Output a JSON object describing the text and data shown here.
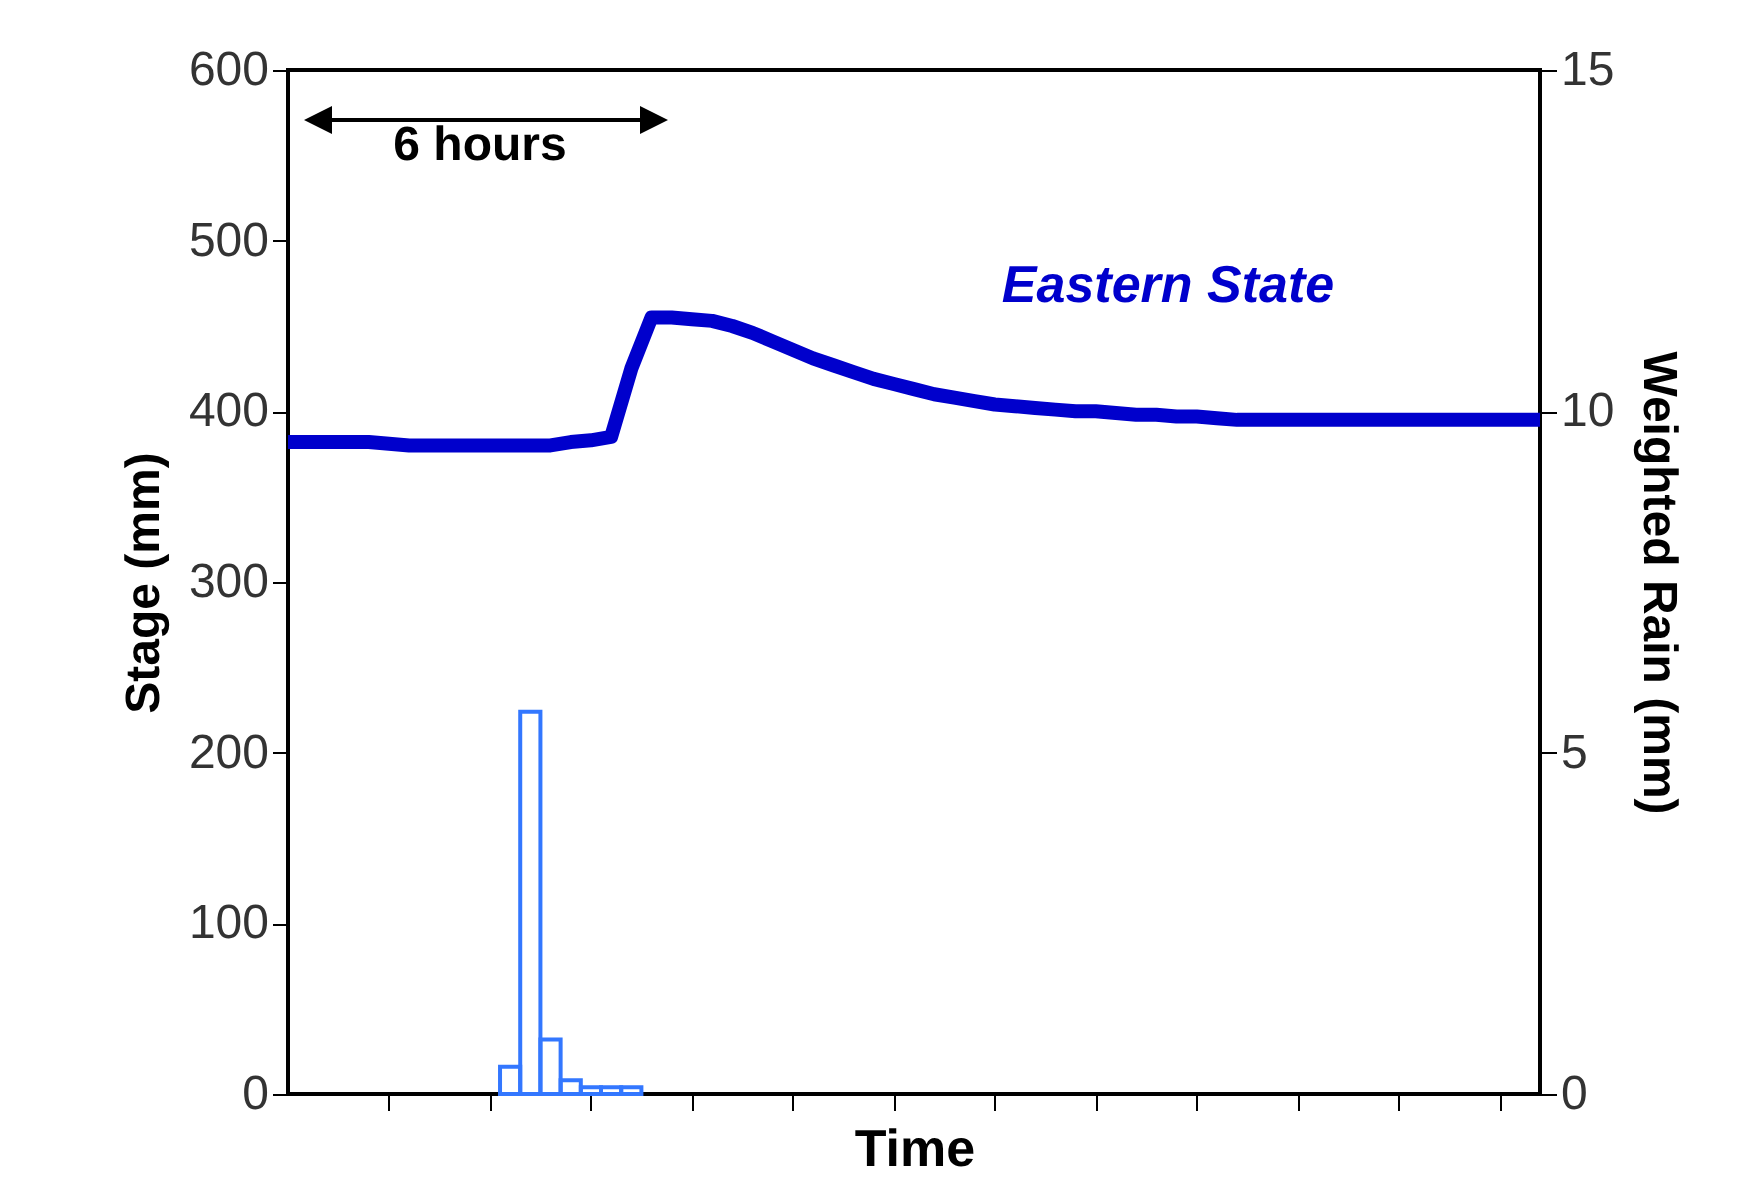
{
  "chart_data": {
    "type": "line",
    "xlabel": "Time",
    "ylabel": "Stage (mm)",
    "y2label": "Weighted Rain (mm)",
    "categories": [
      null,
      null,
      null,
      null,
      null,
      null,
      null,
      null,
      null,
      null,
      null,
      null,
      null,
      null,
      null,
      null,
      null,
      null,
      null,
      null,
      null,
      null,
      null,
      null,
      null,
      null,
      null,
      null,
      null,
      null,
      null,
      null,
      null,
      null,
      null,
      null,
      null,
      null,
      null,
      null,
      null,
      null,
      null,
      null,
      null,
      null,
      null,
      null,
      null,
      null,
      null,
      null,
      null,
      null,
      null,
      null,
      null,
      null,
      null,
      null,
      null,
      null,
      null
    ],
    "series": [
      {
        "type": "bar",
        "axis": "y2",
        "color": "#3377ff",
        "values": [
          null,
          null,
          null,
          null,
          null,
          null,
          null,
          null,
          null,
          null,
          null,
          0.4,
          5.6,
          0.8,
          0.2,
          0.1,
          0.1,
          0.1,
          null,
          null,
          null,
          null,
          null,
          null,
          null,
          null,
          null,
          null,
          null,
          null,
          null,
          null,
          null,
          null,
          null,
          null,
          null,
          null,
          null,
          null,
          null,
          null,
          null,
          null,
          null,
          null,
          null,
          null,
          null,
          null,
          null,
          null,
          null,
          null,
          null,
          null,
          null,
          null,
          null,
          null,
          null,
          null,
          null
        ]
      },
      {
        "name": "Eastern State",
        "color": "#0000cc",
        "values": [
          382,
          382,
          382,
          382,
          382,
          381,
          380,
          380,
          380,
          380,
          380,
          380,
          380,
          380,
          382,
          383,
          385,
          425,
          455,
          455,
          454,
          453,
          450,
          446,
          441,
          436,
          431,
          427,
          423,
          419,
          416,
          413,
          410,
          408,
          406,
          404,
          403,
          402,
          401,
          400,
          400,
          399,
          398,
          398,
          397,
          397,
          396,
          395,
          395,
          395,
          395,
          395,
          395,
          395,
          395,
          395,
          395,
          395,
          395,
          395,
          395,
          395,
          395
        ]
      }
    ],
    "ylim": [
      0,
      600
    ],
    "yticks": [
      0,
      100,
      200,
      300,
      400,
      500,
      600
    ],
    "y2lim": [
      0,
      15
    ],
    "y2ticks": [
      0,
      5,
      10,
      15
    ],
    "grid": false,
    "marker": "none",
    "line_style": "solid",
    "annotations": [
      "6 hours"
    ]
  }
}
